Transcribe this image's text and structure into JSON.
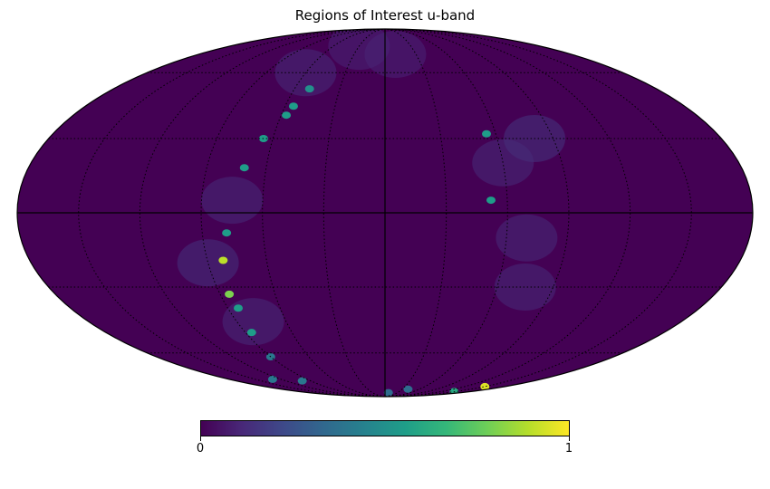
{
  "title": "Regions of Interest u-band",
  "projection": "mollweide",
  "graticule": {
    "meridian_step_deg": 30,
    "parallel_step_deg": 30,
    "style": "dotted"
  },
  "colormap": "viridis",
  "colorbar": {
    "min_label": "0",
    "max_label": "1",
    "range": [
      0,
      1
    ],
    "colors": [
      "#440154",
      "#482878",
      "#3e4989",
      "#31688e",
      "#26828e",
      "#1f9e89",
      "#35b779",
      "#6ece58",
      "#b5de2b",
      "#fde725"
    ]
  },
  "background_value": 0.0,
  "hotspots": [
    {
      "lon": -55,
      "lat": 32,
      "value": 0.55
    },
    {
      "lon": -52,
      "lat": 5,
      "value": 0.55
    },
    {
      "lon": 50,
      "lat": 52,
      "value": 0.5
    },
    {
      "lon": 55,
      "lat": 44,
      "value": 0.55
    },
    {
      "lon": 57,
      "lat": 40,
      "value": 0.55
    },
    {
      "lon": 65,
      "lat": 30,
      "value": 0.55
    },
    {
      "lon": 71,
      "lat": 18,
      "value": 0.55
    },
    {
      "lon": 78,
      "lat": -8,
      "value": 0.55
    },
    {
      "lon": 82,
      "lat": -19,
      "value": 0.9
    },
    {
      "lon": 85,
      "lat": -33,
      "value": 0.8
    },
    {
      "lon": 84,
      "lat": -39,
      "value": 0.55
    },
    {
      "lon": 86,
      "lat": -50,
      "value": 0.55
    },
    {
      "lon": 90,
      "lat": -62,
      "value": 0.4
    },
    {
      "lon": 100,
      "lat": -76,
      "value": 0.4
    },
    {
      "lon": 130,
      "lat": -75,
      "value": 0.4
    },
    {
      "lon": -150,
      "lat": -80,
      "value": 0.95
    },
    {
      "lon": -145,
      "lat": -84,
      "value": 0.6
    },
    {
      "lon": -40,
      "lat": -82,
      "value": 0.35
    },
    {
      "lon": -8,
      "lat": -85,
      "value": 0.35
    }
  ],
  "faint_regions": [
    {
      "lon": -80,
      "lat": 30,
      "value": 0.15
    },
    {
      "lon": -60,
      "lat": 20,
      "value": 0.12
    },
    {
      "lon": -70,
      "lat": -10,
      "value": 0.12
    },
    {
      "lon": -75,
      "lat": -30,
      "value": 0.12
    },
    {
      "lon": 60,
      "lat": 60,
      "value": 0.12
    },
    {
      "lon": 75,
      "lat": 5,
      "value": 0.12
    },
    {
      "lon": 90,
      "lat": -20,
      "value": 0.14
    },
    {
      "lon": 80,
      "lat": -45,
      "value": 0.12
    },
    {
      "lon": -10,
      "lat": 70,
      "value": 0.1
    },
    {
      "lon": 30,
      "lat": 75,
      "value": 0.1
    }
  ]
}
